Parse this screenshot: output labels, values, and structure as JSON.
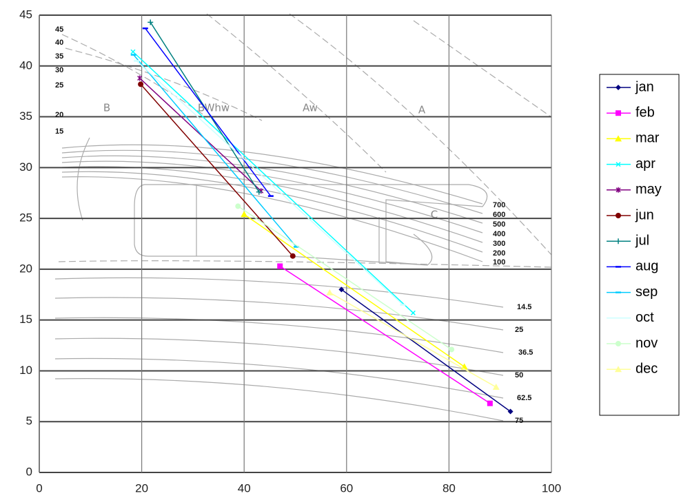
{
  "chart_data": {
    "type": "line",
    "xlim": [
      0,
      100
    ],
    "xticks": [
      0,
      20,
      40,
      60,
      80,
      100
    ],
    "ylim": [
      0,
      45
    ],
    "yticks": [
      0,
      5,
      10,
      15,
      20,
      25,
      30,
      35,
      40,
      45
    ],
    "grid": true,
    "legend": "right",
    "series": [
      {
        "name": "jan",
        "color": "#000080",
        "x": [
          59,
          92
        ],
        "values": [
          18,
          6
        ]
      },
      {
        "name": "feb",
        "color": "#ff00ff",
        "x": [
          47,
          88
        ],
        "values": [
          20.3,
          6.8
        ]
      },
      {
        "name": "mar",
        "color": "#ffff00",
        "x": [
          40,
          83
        ],
        "values": [
          25.4,
          10.4
        ]
      },
      {
        "name": "apr",
        "color": "#00ffff",
        "x": [
          18.3,
          73
        ],
        "values": [
          41.4,
          15.7
        ]
      },
      {
        "name": "may",
        "color": "#800080",
        "x": [
          19.6,
          43.3
        ],
        "values": [
          38.8,
          27.7
        ]
      },
      {
        "name": "jun",
        "color": "#800000",
        "x": [
          19.8,
          49.5
        ],
        "values": [
          38.2,
          21.3
        ]
      },
      {
        "name": "jul",
        "color": "#008080",
        "x": [
          21.7,
          42.9
        ],
        "values": [
          44.3,
          27.6
        ]
      },
      {
        "name": "aug",
        "color": "#0000ff",
        "x": [
          20.7,
          45.2
        ],
        "values": [
          43.7,
          27.2
        ]
      },
      {
        "name": "sep",
        "color": "#00ccff",
        "x": [
          18.4,
          50.2
        ],
        "values": [
          41.1,
          22.2
        ]
      },
      {
        "name": "oct",
        "color": "#ccffff",
        "x": [
          19,
          71
        ],
        "values": [
          40.5,
          16.5
        ]
      },
      {
        "name": "nov",
        "color": "#ccffcc",
        "x": [
          38.8,
          80.5
        ],
        "values": [
          26.2,
          12.1
        ]
      },
      {
        "name": "dec",
        "color": "#ffff99",
        "x": [
          56.7,
          89.2
        ],
        "values": [
          17.7,
          8.4
        ]
      }
    ],
    "annotations": [
      "45",
      "40",
      "35",
      "30",
      "25",
      "20",
      "15",
      "700",
      "600",
      "500",
      "400",
      "300",
      "200",
      "100",
      "14.5",
      "25",
      "36.5",
      "50",
      "62.5",
      "75",
      "B",
      "BWhw",
      "Aw",
      "A",
      "C"
    ]
  }
}
